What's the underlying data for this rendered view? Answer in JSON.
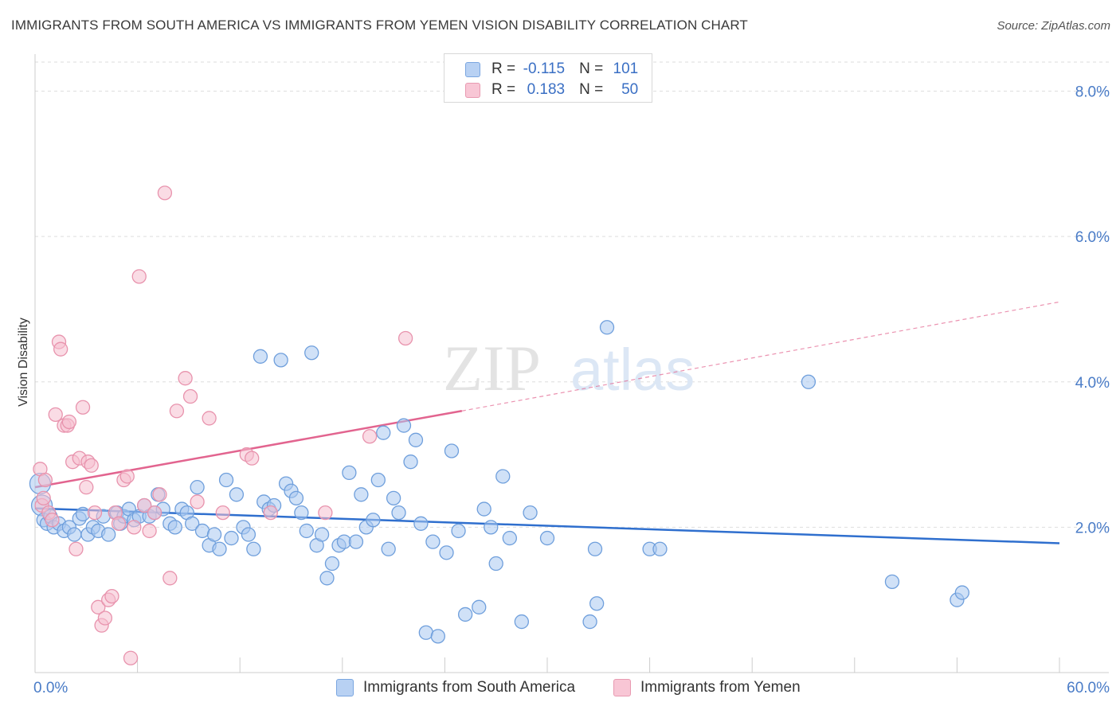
{
  "header": {
    "title": "IMMIGRANTS FROM SOUTH AMERICA VS IMMIGRANTS FROM YEMEN VISION DISABILITY CORRELATION CHART",
    "source": "Source: ZipAtlas.com"
  },
  "legend": {
    "r_label": "R =",
    "n_label": "N =",
    "rows": [
      {
        "name": "Immigrants from South America",
        "r": "-0.115",
        "n": "101",
        "fill": "#b8d1f3",
        "stroke": "#7aa6e0"
      },
      {
        "name": "Immigrants from Yemen",
        "r": "0.183",
        "n": "50",
        "fill": "#f8c6d5",
        "stroke": "#e89ab1"
      }
    ]
  },
  "watermark": {
    "part1": "ZIP",
    "part2": "atlas"
  },
  "colors": {
    "blue_fill": "#a9c8f0",
    "blue_stroke": "#6f9fdc",
    "blue_line": "#2f6fce",
    "pink_fill": "#f6bfd0",
    "pink_stroke": "#e893ad",
    "pink_line": "#e2648f",
    "grid": "#dedede",
    "axis": "#cccccc",
    "tick_text": "#4a7cc7"
  },
  "chart_data": {
    "type": "scatter",
    "title": "IMMIGRANTS FROM SOUTH AMERICA VS IMMIGRANTS FROM YEMEN VISION DISABILITY CORRELATION CHART",
    "xlabel": "",
    "ylabel": "Vision Disability",
    "xlim": [
      0,
      60
    ],
    "ylim": [
      0,
      8.4
    ],
    "x_tick_labels": [
      {
        "value": 0,
        "label": "0.0%"
      },
      {
        "value": 60,
        "label": "60.0%"
      }
    ],
    "x_minor_ticks": [
      0,
      6,
      12,
      18,
      24,
      30,
      36,
      42,
      48,
      54,
      60
    ],
    "y_ticks": [
      {
        "value": 2,
        "label": "2.0%"
      },
      {
        "value": 4,
        "label": "4.0%"
      },
      {
        "value": 6,
        "label": "6.0%"
      },
      {
        "value": 8,
        "label": "8.0%"
      }
    ],
    "grid": true,
    "series": [
      {
        "name": "Immigrants from South America",
        "color": "blue",
        "trend": {
          "x0": 0,
          "y0": 2.26,
          "x1": 60,
          "y1": 1.78
        },
        "points": [
          [
            0.3,
            2.6
          ],
          [
            0.4,
            2.3
          ],
          [
            0.5,
            2.1
          ],
          [
            0.7,
            2.05
          ],
          [
            0.9,
            2.15
          ],
          [
            1.1,
            2.0
          ],
          [
            1.4,
            2.05
          ],
          [
            1.7,
            1.95
          ],
          [
            2.0,
            2.0
          ],
          [
            2.3,
            1.9
          ],
          [
            2.6,
            2.12
          ],
          [
            2.8,
            2.18
          ],
          [
            3.1,
            1.9
          ],
          [
            3.4,
            2.0
          ],
          [
            3.7,
            1.95
          ],
          [
            4.0,
            2.15
          ],
          [
            4.3,
            1.9
          ],
          [
            4.8,
            2.2
          ],
          [
            5.0,
            2.05
          ],
          [
            5.2,
            2.15
          ],
          [
            5.5,
            2.25
          ],
          [
            5.8,
            2.1
          ],
          [
            6.1,
            2.15
          ],
          [
            6.4,
            2.3
          ],
          [
            6.7,
            2.15
          ],
          [
            7.0,
            2.2
          ],
          [
            7.2,
            2.45
          ],
          [
            7.5,
            2.25
          ],
          [
            7.9,
            2.05
          ],
          [
            8.2,
            2.0
          ],
          [
            8.6,
            2.25
          ],
          [
            8.9,
            2.2
          ],
          [
            9.2,
            2.05
          ],
          [
            9.5,
            2.55
          ],
          [
            9.8,
            1.95
          ],
          [
            10.2,
            1.75
          ],
          [
            10.5,
            1.9
          ],
          [
            10.8,
            1.7
          ],
          [
            11.2,
            2.65
          ],
          [
            11.5,
            1.85
          ],
          [
            11.8,
            2.45
          ],
          [
            12.2,
            2.0
          ],
          [
            12.5,
            1.9
          ],
          [
            12.8,
            1.7
          ],
          [
            13.2,
            4.35
          ],
          [
            13.4,
            2.35
          ],
          [
            13.7,
            2.25
          ],
          [
            14.0,
            2.3
          ],
          [
            14.4,
            4.3
          ],
          [
            14.7,
            2.6
          ],
          [
            15.0,
            2.5
          ],
          [
            15.3,
            2.4
          ],
          [
            15.6,
            2.2
          ],
          [
            15.9,
            1.95
          ],
          [
            16.2,
            4.4
          ],
          [
            16.5,
            1.75
          ],
          [
            16.8,
            1.9
          ],
          [
            17.1,
            1.3
          ],
          [
            17.4,
            1.5
          ],
          [
            17.8,
            1.75
          ],
          [
            18.1,
            1.8
          ],
          [
            18.4,
            2.75
          ],
          [
            18.8,
            1.8
          ],
          [
            19.1,
            2.45
          ],
          [
            19.4,
            2.0
          ],
          [
            19.8,
            2.1
          ],
          [
            20.1,
            2.65
          ],
          [
            20.4,
            3.3
          ],
          [
            20.7,
            1.7
          ],
          [
            21.0,
            2.4
          ],
          [
            21.3,
            2.2
          ],
          [
            21.6,
            3.4
          ],
          [
            22.0,
            2.9
          ],
          [
            22.3,
            3.2
          ],
          [
            22.6,
            2.05
          ],
          [
            22.9,
            0.55
          ],
          [
            23.3,
            1.8
          ],
          [
            23.6,
            0.5
          ],
          [
            24.1,
            1.65
          ],
          [
            24.4,
            3.05
          ],
          [
            24.8,
            1.95
          ],
          [
            25.2,
            0.8
          ],
          [
            26.0,
            0.9
          ],
          [
            26.3,
            2.25
          ],
          [
            26.7,
            2.0
          ],
          [
            27.0,
            1.5
          ],
          [
            27.4,
            2.7
          ],
          [
            27.8,
            1.85
          ],
          [
            28.5,
            0.7
          ],
          [
            29.0,
            2.2
          ],
          [
            30.0,
            1.85
          ],
          [
            32.5,
            0.7
          ],
          [
            32.8,
            1.7
          ],
          [
            32.9,
            0.95
          ],
          [
            33.5,
            4.75
          ],
          [
            36.0,
            1.7
          ],
          [
            36.6,
            1.7
          ],
          [
            45.3,
            4.0
          ],
          [
            50.2,
            1.25
          ],
          [
            54.0,
            1.0
          ],
          [
            54.3,
            1.1
          ]
        ]
      },
      {
        "name": "Immigrants from Yemen",
        "color": "pink",
        "trend": {
          "x0": 0,
          "y0": 2.55,
          "x1": 25,
          "y1": 3.6,
          "dashed_to": {
            "x": 60,
            "y": 5.1
          }
        },
        "points": [
          [
            0.3,
            2.8
          ],
          [
            0.4,
            2.3
          ],
          [
            0.5,
            2.4
          ],
          [
            0.6,
            2.65
          ],
          [
            0.8,
            2.2
          ],
          [
            1.0,
            2.1
          ],
          [
            1.2,
            3.55
          ],
          [
            1.4,
            4.55
          ],
          [
            1.5,
            4.45
          ],
          [
            1.7,
            3.4
          ],
          [
            1.9,
            3.4
          ],
          [
            2.0,
            3.45
          ],
          [
            2.2,
            2.9
          ],
          [
            2.4,
            1.7
          ],
          [
            2.6,
            2.95
          ],
          [
            2.8,
            3.65
          ],
          [
            3.0,
            2.55
          ],
          [
            3.1,
            2.9
          ],
          [
            3.3,
            2.85
          ],
          [
            3.5,
            2.2
          ],
          [
            3.7,
            0.9
          ],
          [
            3.9,
            0.65
          ],
          [
            4.1,
            0.75
          ],
          [
            4.3,
            1.0
          ],
          [
            4.5,
            1.05
          ],
          [
            4.7,
            2.2
          ],
          [
            4.9,
            2.05
          ],
          [
            5.2,
            2.65
          ],
          [
            5.4,
            2.7
          ],
          [
            5.6,
            0.2
          ],
          [
            5.8,
            2.0
          ],
          [
            6.1,
            5.45
          ],
          [
            6.4,
            2.3
          ],
          [
            6.7,
            1.95
          ],
          [
            7.0,
            2.2
          ],
          [
            7.3,
            2.45
          ],
          [
            7.6,
            6.6
          ],
          [
            7.9,
            1.3
          ],
          [
            8.3,
            3.6
          ],
          [
            8.8,
            4.05
          ],
          [
            9.1,
            3.8
          ],
          [
            9.5,
            2.35
          ],
          [
            10.2,
            3.5
          ],
          [
            11.0,
            2.2
          ],
          [
            12.4,
            3.0
          ],
          [
            12.7,
            2.95
          ],
          [
            13.8,
            2.2
          ],
          [
            17.0,
            2.2
          ],
          [
            19.6,
            3.25
          ],
          [
            21.7,
            4.6
          ]
        ]
      }
    ]
  }
}
